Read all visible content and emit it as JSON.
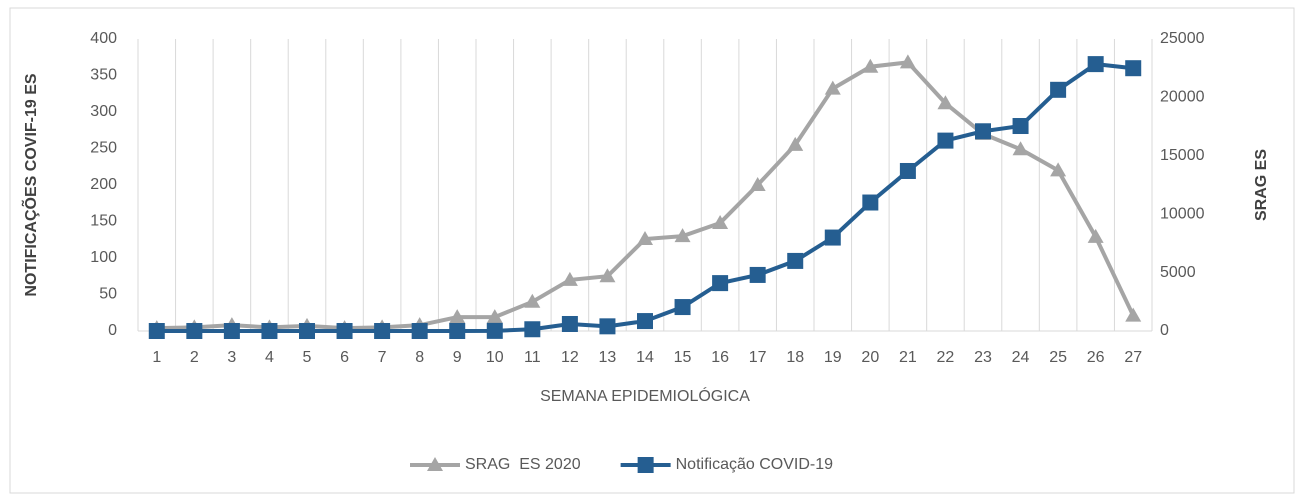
{
  "chart_data": {
    "type": "line",
    "x_label": "SEMANA EPIDEMIOLÓGICA",
    "y_label": "NOTIFICAÇÕES COVIF-19 ES",
    "y2_label": "SRAG ES",
    "categories": [
      "1",
      "2",
      "3",
      "4",
      "5",
      "6",
      "7",
      "8",
      "9",
      "10",
      "11",
      "12",
      "13",
      "14",
      "15",
      "16",
      "17",
      "18",
      "19",
      "20",
      "21",
      "22",
      "23",
      "24",
      "25",
      "26",
      "27"
    ],
    "series": [
      {
        "name": "SRAG  ES 2020",
        "color": "#a5a5a5",
        "marker": "triangle",
        "values": [
          4,
          5,
          8,
          5,
          7,
          4,
          5,
          8,
          19,
          19,
          40,
          70,
          75,
          126,
          130,
          148,
          200,
          255,
          332,
          362,
          368,
          312,
          270,
          249,
          220,
          129,
          21
        ]
      },
      {
        "name": "Notificação COVID-19",
        "color": "#255e91",
        "marker": "square",
        "axis": "y2",
        "values": [
          0,
          0,
          0,
          0,
          0,
          0,
          0,
          0,
          0,
          10,
          150,
          600,
          400,
          850,
          2050,
          4100,
          4800,
          6000,
          8000,
          11000,
          13700,
          16300,
          17100,
          17550,
          20650,
          22850,
          22500
        ]
      }
    ],
    "ylim": [
      0,
      400
    ],
    "yticks": [
      0,
      50,
      100,
      150,
      200,
      250,
      300,
      350,
      400
    ],
    "y2lim": [
      0,
      25000
    ],
    "y2ticks": [
      0,
      5000,
      10000,
      15000,
      20000,
      25000
    ],
    "grid": true,
    "legend": "bottom"
  }
}
